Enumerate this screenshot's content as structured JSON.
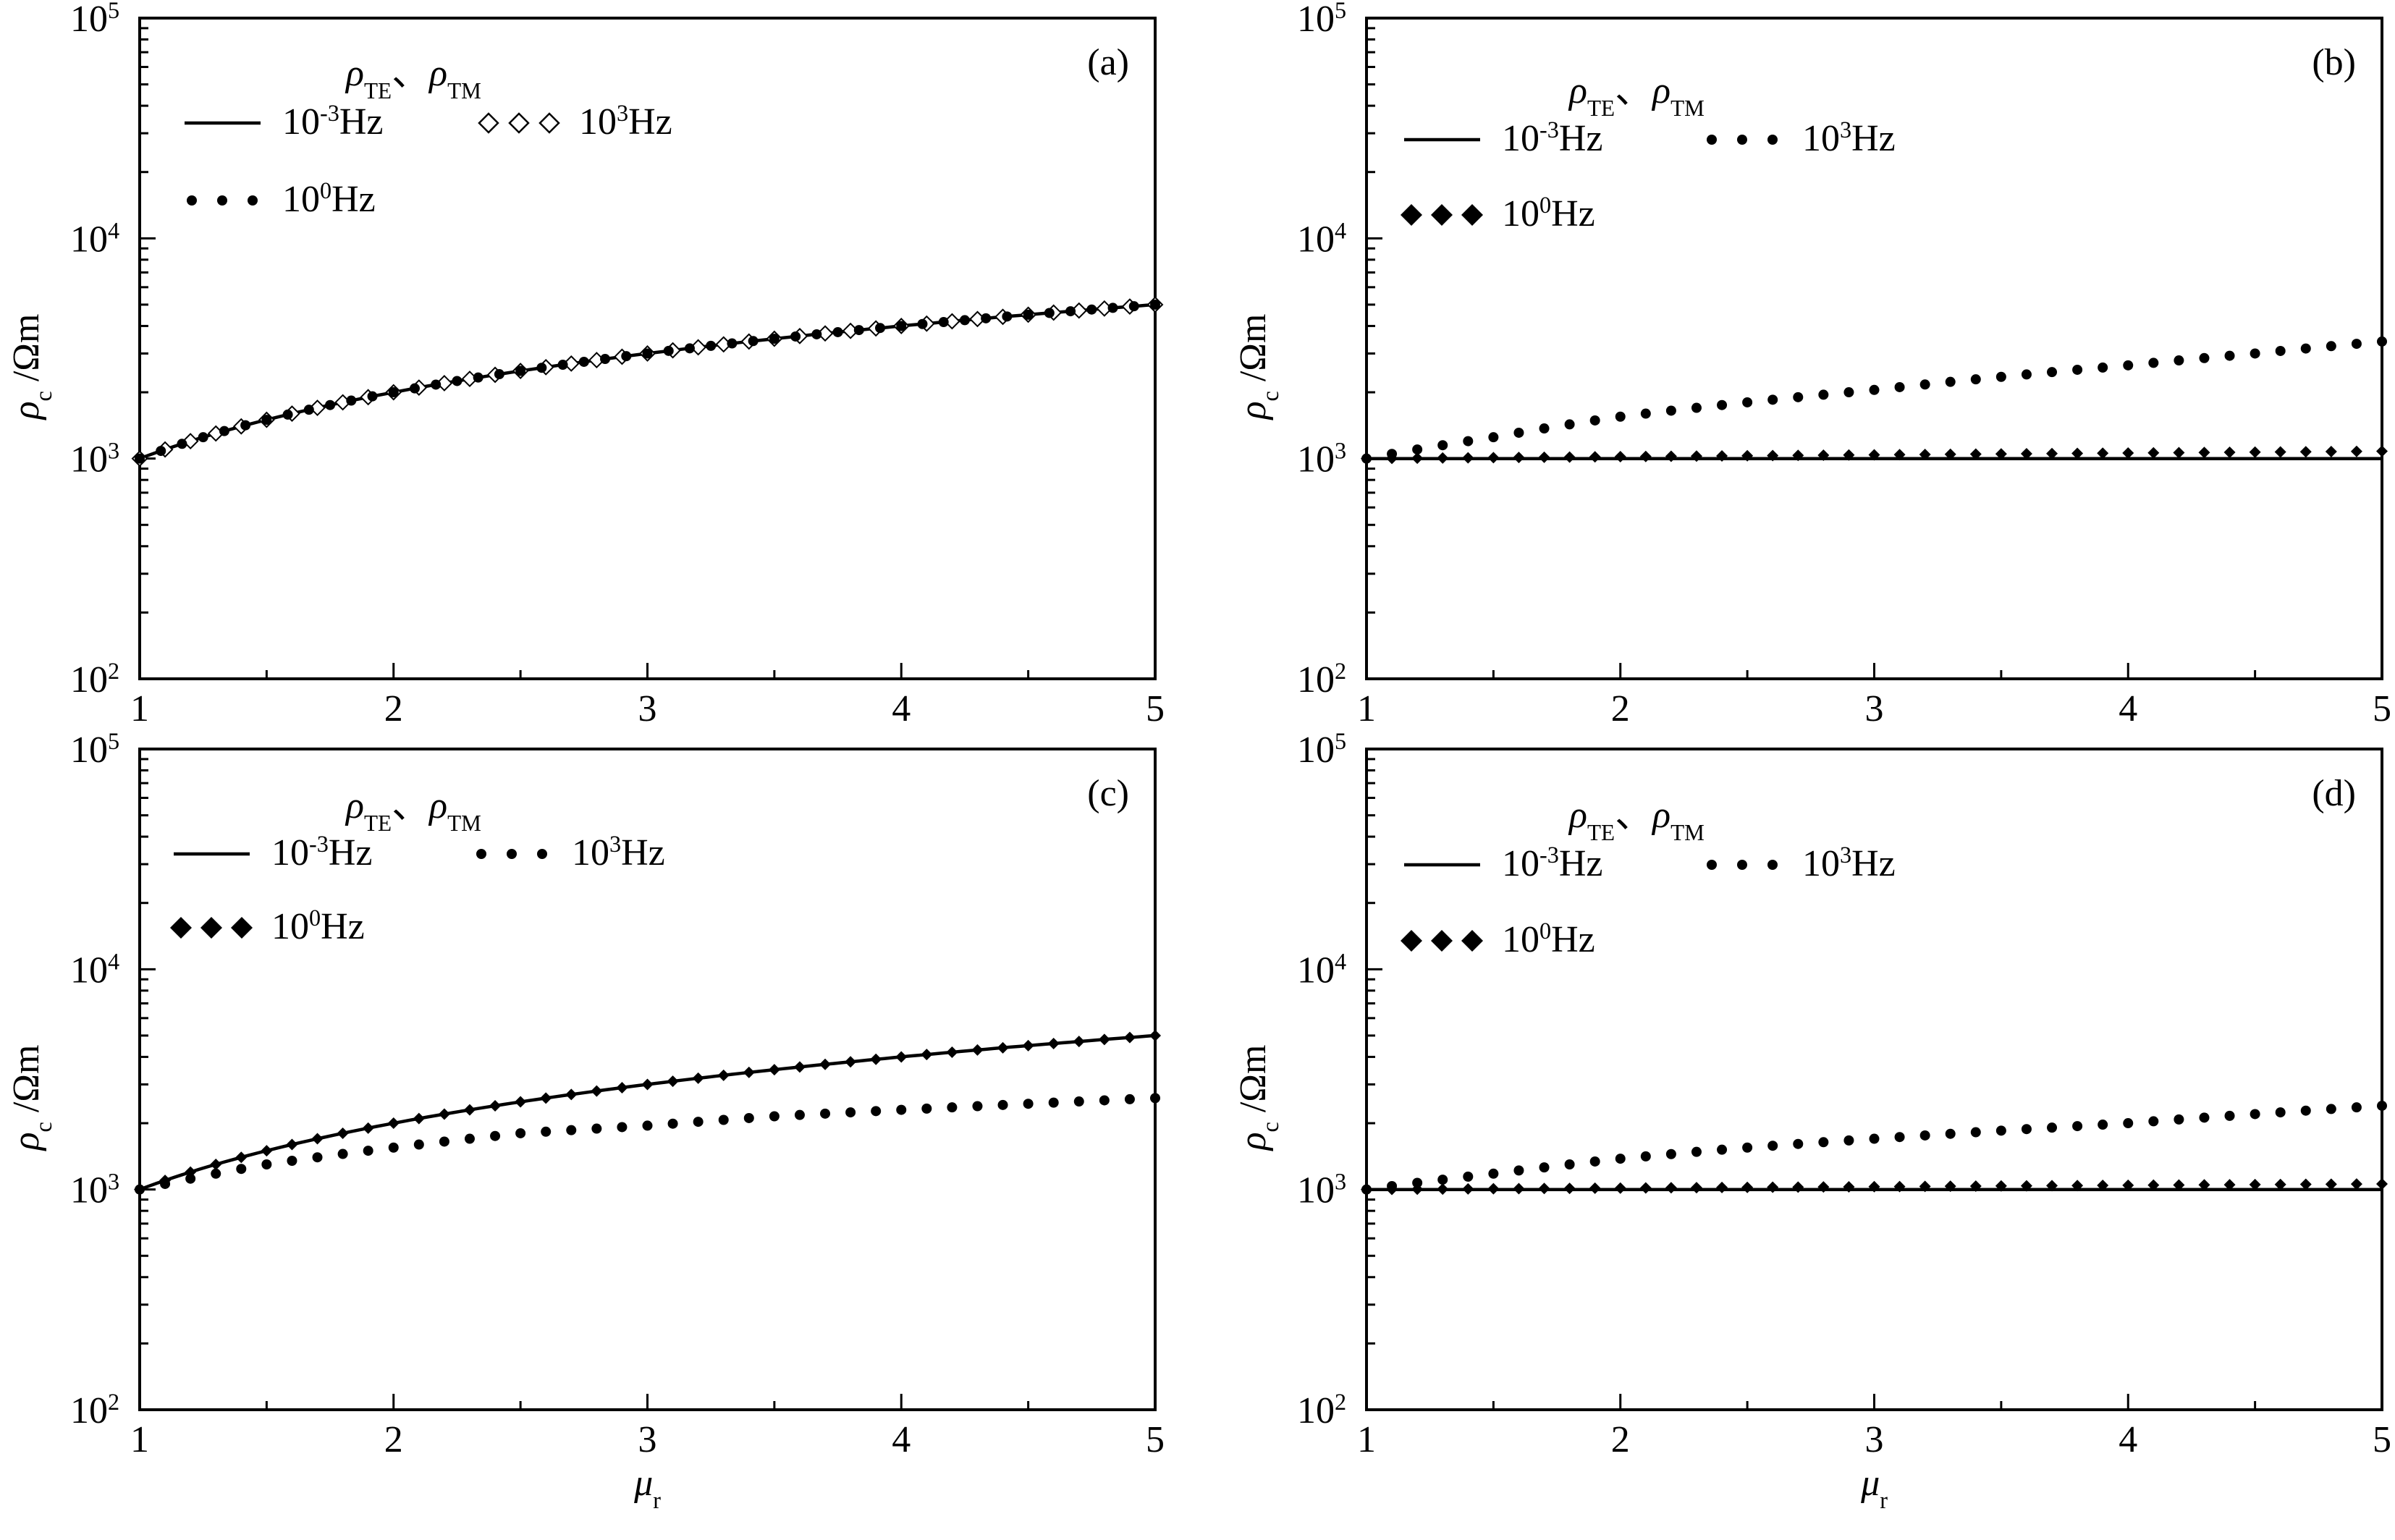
{
  "figure": {
    "y_axis_label": {
      "base": "ρ",
      "sub": "c",
      "unit": " /Ωm"
    },
    "x_axis_label": {
      "base": "μ",
      "sub": "r"
    }
  },
  "chart_data": [
    {
      "type": "line",
      "panel_label": "(a)",
      "xlim": [
        1,
        5
      ],
      "ylim": [
        100,
        100000
      ],
      "yscale": "log",
      "xticks": [
        1,
        2,
        3,
        4,
        5
      ],
      "yticks": [
        100,
        1000,
        10000,
        100000
      ],
      "legend_header": "ρTE、ρTM",
      "series": [
        {
          "name": "10-3Hz",
          "style": "line",
          "x": [
            1,
            1.5,
            2,
            2.5,
            3,
            3.5,
            4,
            4.5,
            5
          ],
          "values": [
            1000,
            1500,
            2000,
            2500,
            3000,
            3500,
            4000,
            4500,
            5000
          ]
        },
        {
          "name": "100Hz",
          "style": "dot",
          "x": [
            1,
            1.5,
            2,
            2.5,
            3,
            3.5,
            4,
            4.5,
            5
          ],
          "values": [
            1000,
            1500,
            2000,
            2500,
            3000,
            3500,
            4000,
            4500,
            5000
          ]
        },
        {
          "name": "103Hz",
          "style": "open-diamond",
          "x": [
            1,
            1.5,
            2,
            2.5,
            3,
            3.5,
            4,
            4.5,
            5
          ],
          "values": [
            1000,
            1500,
            2000,
            2500,
            3000,
            3500,
            4000,
            4500,
            5000
          ]
        }
      ]
    },
    {
      "type": "line",
      "panel_label": "(b)",
      "xlim": [
        1,
        5
      ],
      "ylim": [
        100,
        100000
      ],
      "yscale": "log",
      "xticks": [
        1,
        2,
        3,
        4,
        5
      ],
      "yticks": [
        100,
        1000,
        10000,
        100000
      ],
      "legend_header": "ρTE、ρTM",
      "series": [
        {
          "name": "10-3Hz",
          "style": "line",
          "x": [
            1,
            2,
            3,
            4,
            5
          ],
          "values": [
            1000,
            1000,
            1000,
            1000,
            1000
          ]
        },
        {
          "name": "100Hz",
          "style": "filled-diamond",
          "x": [
            1,
            2,
            3,
            4,
            5
          ],
          "values": [
            1000,
            1020,
            1040,
            1060,
            1080
          ]
        },
        {
          "name": "103Hz",
          "style": "dot",
          "x": [
            1,
            1.5,
            2,
            2.5,
            3,
            3.5,
            4,
            4.5,
            5
          ],
          "values": [
            1000,
            1250,
            1550,
            1800,
            2050,
            2350,
            2650,
            3000,
            3400
          ]
        }
      ]
    },
    {
      "type": "line",
      "panel_label": "(c)",
      "xlim": [
        1,
        5
      ],
      "ylim": [
        100,
        100000
      ],
      "yscale": "log",
      "xticks": [
        1,
        2,
        3,
        4,
        5
      ],
      "yticks": [
        100,
        1000,
        10000,
        100000
      ],
      "legend_header": "ρTE、ρTM",
      "series": [
        {
          "name": "10-3Hz",
          "style": "line",
          "x": [
            1,
            1.5,
            2,
            2.5,
            3,
            3.5,
            4,
            4.5,
            5
          ],
          "values": [
            1000,
            1500,
            2000,
            2500,
            3000,
            3500,
            4000,
            4500,
            5000
          ]
        },
        {
          "name": "100Hz",
          "style": "filled-diamond",
          "x": [
            1,
            1.5,
            2,
            2.5,
            3,
            3.5,
            4,
            4.5,
            5
          ],
          "values": [
            1000,
            1500,
            2000,
            2500,
            3000,
            3500,
            4000,
            4500,
            5000
          ]
        },
        {
          "name": "103Hz",
          "style": "dot",
          "x": [
            1,
            1.5,
            2,
            2.5,
            3,
            3.5,
            4,
            4.5,
            5
          ],
          "values": [
            1000,
            1300,
            1550,
            1800,
            1950,
            2150,
            2300,
            2450,
            2600
          ]
        }
      ]
    },
    {
      "type": "line",
      "panel_label": "(d)",
      "xlim": [
        1,
        5
      ],
      "ylim": [
        100,
        100000
      ],
      "yscale": "log",
      "xticks": [
        1,
        2,
        3,
        4,
        5
      ],
      "yticks": [
        100,
        1000,
        10000,
        100000
      ],
      "legend_header": "ρTE、ρTM",
      "series": [
        {
          "name": "10-3Hz",
          "style": "line",
          "x": [
            1,
            2,
            3,
            4,
            5
          ],
          "values": [
            1000,
            1000,
            1000,
            1000,
            1000
          ]
        },
        {
          "name": "100Hz",
          "style": "filled-diamond",
          "x": [
            1,
            2,
            3,
            4,
            5
          ],
          "values": [
            1000,
            1015,
            1030,
            1045,
            1060
          ]
        },
        {
          "name": "103Hz",
          "style": "dot",
          "x": [
            1,
            1.5,
            2,
            2.5,
            3,
            3.5,
            4,
            4.5,
            5
          ],
          "values": [
            1000,
            1180,
            1380,
            1550,
            1700,
            1850,
            2000,
            2200,
            2400
          ]
        }
      ]
    }
  ]
}
